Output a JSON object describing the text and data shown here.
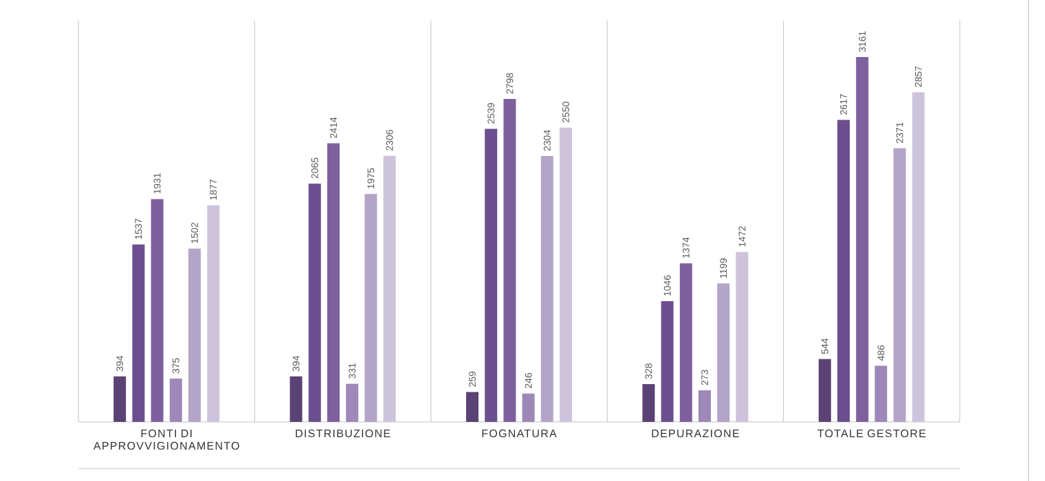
{
  "chart_data": {
    "type": "bar",
    "categories": [
      "FONTI DI APPROVVIGIONAMENTO",
      "DISTRIBUZIONE",
      "FOGNATURA",
      "DEPURAZIONE",
      "TOTALE GESTORE"
    ],
    "series": [
      {
        "color": "#5b4274",
        "values": [
          394,
          394,
          259,
          328,
          544
        ]
      },
      {
        "color": "#6c4f8e",
        "values": [
          1537,
          2065,
          2539,
          1046,
          2617
        ]
      },
      {
        "color": "#7e609e",
        "values": [
          1931,
          2414,
          2798,
          1374,
          3161
        ]
      },
      {
        "color": "#9d88b7",
        "values": [
          375,
          331,
          246,
          273,
          486
        ]
      },
      {
        "color": "#b3a5c8",
        "values": [
          1502,
          1975,
          2304,
          1199,
          2371
        ]
      },
      {
        "color": "#cdc4dc",
        "values": [
          1877,
          2306,
          2550,
          1472,
          2857
        ]
      }
    ],
    "data_labels": true
  }
}
